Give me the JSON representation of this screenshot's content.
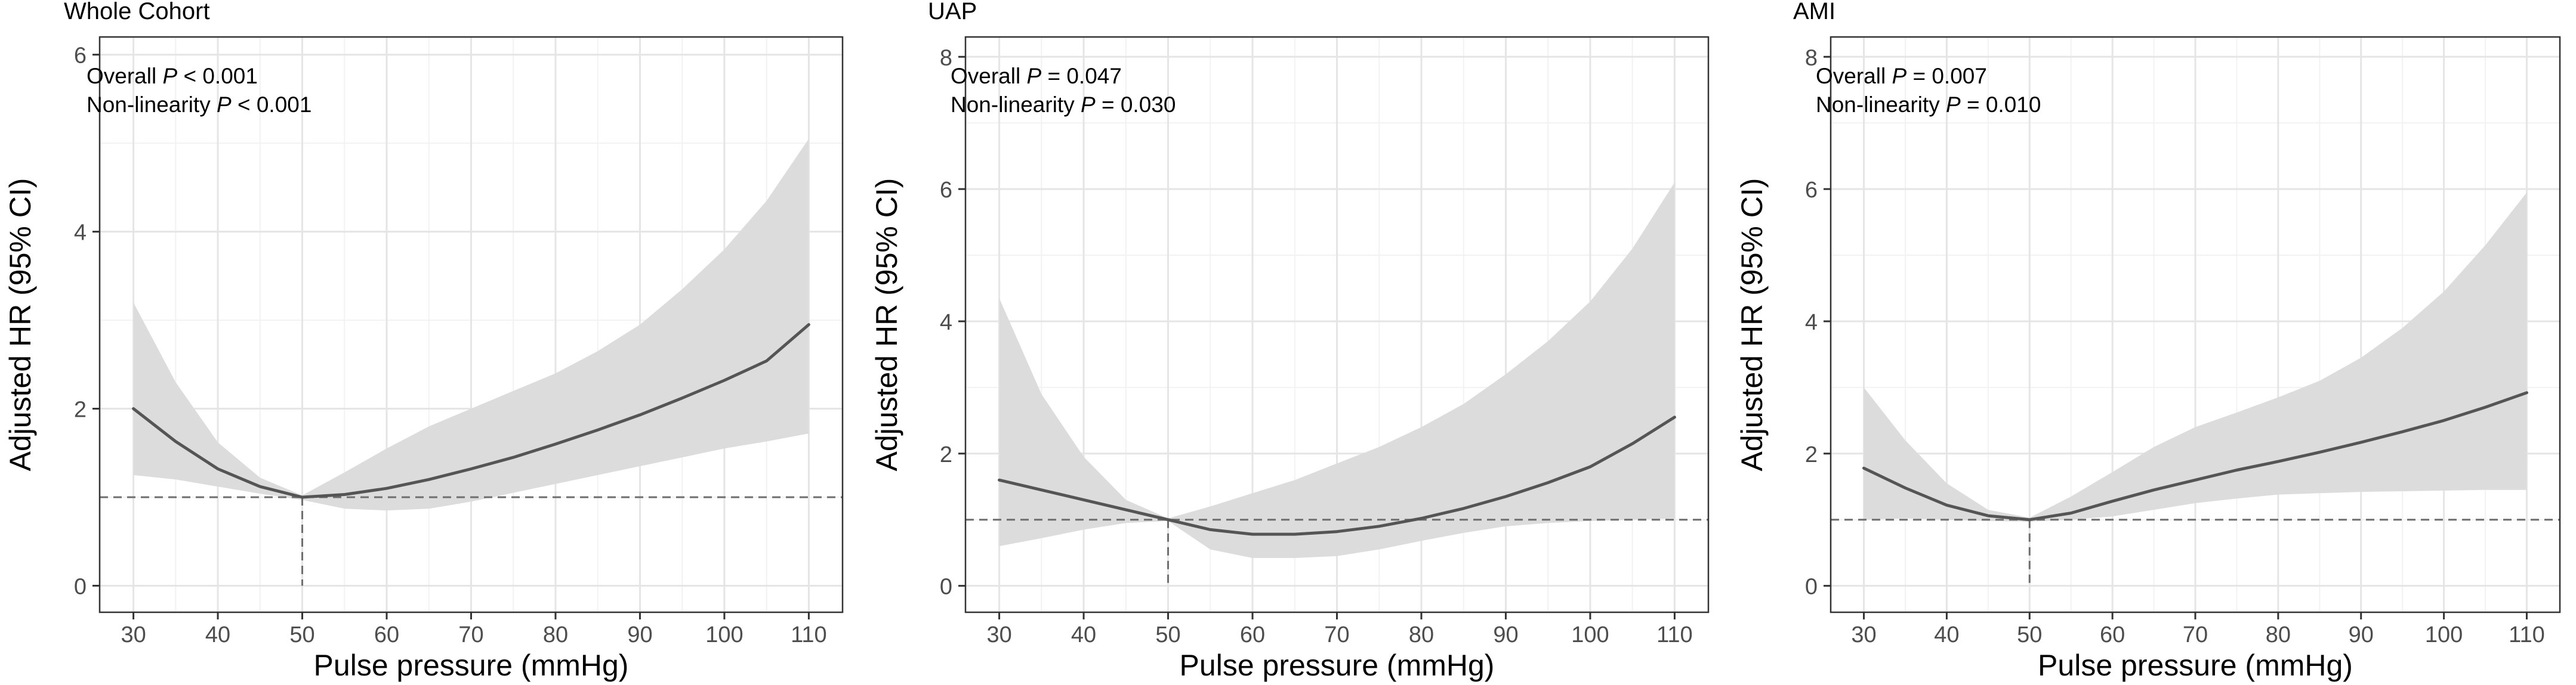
{
  "chart_data": [
    {
      "type": "line",
      "title": "Whole Cohort",
      "xlabel": "Pulse pressure (mmHg)",
      "ylabel": "Adjusted HR (95% CI)",
      "xlim": [
        26,
        114
      ],
      "ylim": [
        -0.3,
        6.2
      ],
      "xticks": [
        30,
        40,
        50,
        60,
        70,
        80,
        90,
        100,
        110
      ],
      "yticks": [
        0,
        2,
        4,
        6
      ],
      "grid": true,
      "reference_line_y": 1,
      "reference_line_x": 50,
      "annotation": [
        {
          "prefix": "Overall ",
          "p": "P",
          "suffix": " < 0.001"
        },
        {
          "prefix": "Non-linearity ",
          "p": "P",
          "suffix": " < 0.001"
        }
      ],
      "series": [
        {
          "name": "HR",
          "x": [
            30,
            35,
            40,
            45,
            50,
            55,
            60,
            65,
            70,
            75,
            80,
            85,
            90,
            95,
            100,
            105,
            110
          ],
          "values": [
            2.0,
            1.63,
            1.32,
            1.12,
            1.0,
            1.03,
            1.1,
            1.2,
            1.32,
            1.45,
            1.6,
            1.76,
            1.93,
            2.12,
            2.32,
            2.54,
            2.95
          ]
        },
        {
          "name": "lower 95% CI",
          "x": [
            30,
            35,
            40,
            45,
            50,
            55,
            60,
            65,
            70,
            75,
            80,
            85,
            90,
            95,
            100,
            105,
            110
          ],
          "values": [
            1.25,
            1.2,
            1.12,
            1.04,
            0.97,
            0.87,
            0.85,
            0.87,
            0.95,
            1.05,
            1.15,
            1.25,
            1.35,
            1.45,
            1.55,
            1.63,
            1.72
          ]
        },
        {
          "name": "upper 95% CI",
          "x": [
            30,
            35,
            40,
            45,
            50,
            55,
            60,
            65,
            70,
            75,
            80,
            85,
            90,
            95,
            100,
            105,
            110
          ],
          "values": [
            3.2,
            2.3,
            1.62,
            1.22,
            1.02,
            1.28,
            1.55,
            1.8,
            2.0,
            2.2,
            2.4,
            2.65,
            2.95,
            3.35,
            3.8,
            4.35,
            5.05
          ]
        }
      ]
    },
    {
      "type": "line",
      "title": "UAP",
      "xlabel": "Pulse pressure (mmHg)",
      "ylabel": "Adjusted HR (95% CI)",
      "xlim": [
        26,
        114
      ],
      "ylim": [
        -0.4,
        8.3
      ],
      "xticks": [
        30,
        40,
        50,
        60,
        70,
        80,
        90,
        100,
        110
      ],
      "yticks": [
        0,
        2,
        4,
        6,
        8
      ],
      "grid": true,
      "reference_line_y": 1,
      "reference_line_x": 50,
      "annotation": [
        {
          "prefix": "Overall ",
          "p": "P",
          "suffix": " = 0.047"
        },
        {
          "prefix": "Non-linearity ",
          "p": "P",
          "suffix": " = 0.030"
        }
      ],
      "series": [
        {
          "name": "HR",
          "x": [
            30,
            35,
            40,
            45,
            50,
            55,
            60,
            65,
            70,
            75,
            80,
            85,
            90,
            95,
            100,
            105,
            110
          ],
          "values": [
            1.6,
            1.45,
            1.3,
            1.15,
            1.0,
            0.85,
            0.78,
            0.78,
            0.82,
            0.9,
            1.02,
            1.17,
            1.35,
            1.56,
            1.8,
            2.15,
            2.55
          ]
        },
        {
          "name": "lower 95% CI",
          "x": [
            30,
            35,
            40,
            45,
            50,
            55,
            60,
            65,
            70,
            75,
            80,
            85,
            90,
            95,
            100,
            105,
            110
          ],
          "values": [
            0.6,
            0.72,
            0.85,
            0.95,
            0.98,
            0.55,
            0.42,
            0.42,
            0.45,
            0.55,
            0.68,
            0.8,
            0.9,
            0.95,
            0.98,
            1.0,
            1.02
          ]
        },
        {
          "name": "upper 95% CI",
          "x": [
            30,
            35,
            40,
            45,
            50,
            55,
            60,
            65,
            70,
            75,
            80,
            85,
            90,
            95,
            100,
            105,
            110
          ],
          "values": [
            4.35,
            2.9,
            1.95,
            1.3,
            1.02,
            1.2,
            1.4,
            1.6,
            1.85,
            2.1,
            2.4,
            2.75,
            3.2,
            3.7,
            4.3,
            5.1,
            6.1
          ]
        }
      ]
    },
    {
      "type": "line",
      "title": "AMI",
      "xlabel": "Pulse pressure (mmHg)",
      "ylabel": "Adjusted HR (95% CI)",
      "xlim": [
        26,
        114
      ],
      "ylim": [
        -0.4,
        8.3
      ],
      "xticks": [
        30,
        40,
        50,
        60,
        70,
        80,
        90,
        100,
        110
      ],
      "yticks": [
        0,
        2,
        4,
        6,
        8
      ],
      "grid": true,
      "reference_line_y": 1,
      "reference_line_x": 50,
      "annotation": [
        {
          "prefix": "Overall ",
          "p": "P",
          "suffix": " = 0.007"
        },
        {
          "prefix": "Non-linearity ",
          "p": "P",
          "suffix": " = 0.010"
        }
      ],
      "series": [
        {
          "name": "HR",
          "x": [
            30,
            35,
            40,
            45,
            50,
            55,
            60,
            65,
            70,
            75,
            80,
            85,
            90,
            95,
            100,
            105,
            110
          ],
          "values": [
            1.78,
            1.48,
            1.22,
            1.06,
            1.0,
            1.1,
            1.28,
            1.45,
            1.6,
            1.75,
            1.88,
            2.02,
            2.17,
            2.33,
            2.5,
            2.7,
            2.92
          ]
        },
        {
          "name": "lower 95% CI",
          "x": [
            30,
            35,
            40,
            45,
            50,
            55,
            60,
            65,
            70,
            75,
            80,
            85,
            90,
            95,
            100,
            105,
            110
          ],
          "values": [
            1.0,
            1.02,
            1.0,
            0.98,
            0.97,
            1.0,
            1.05,
            1.15,
            1.25,
            1.32,
            1.38,
            1.4,
            1.42,
            1.43,
            1.44,
            1.45,
            1.45
          ]
        },
        {
          "name": "upper 95% CI",
          "x": [
            30,
            35,
            40,
            45,
            50,
            55,
            60,
            65,
            70,
            75,
            80,
            85,
            90,
            95,
            100,
            105,
            110
          ],
          "values": [
            3.0,
            2.2,
            1.55,
            1.15,
            1.03,
            1.35,
            1.72,
            2.1,
            2.4,
            2.62,
            2.85,
            3.1,
            3.45,
            3.9,
            4.45,
            5.15,
            5.95
          ]
        }
      ]
    }
  ]
}
